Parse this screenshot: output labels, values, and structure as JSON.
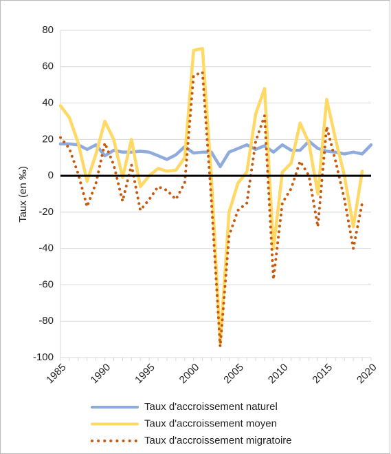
{
  "chart_data": {
    "type": "line",
    "y_label": "Taux (en ‰)",
    "x": [
      1985,
      1986,
      1987,
      1988,
      1989,
      1990,
      1991,
      1992,
      1993,
      1994,
      1995,
      1996,
      1997,
      1998,
      1999,
      2000,
      2001,
      2002,
      2003,
      2004,
      2005,
      2006,
      2007,
      2008,
      2009,
      2010,
      2011,
      2012,
      2013,
      2014,
      2015,
      2016,
      2017,
      2018,
      2019,
      2020
    ],
    "series": [
      {
        "name": "Taux d'accroissement naturel",
        "color": "#8faadc",
        "style": "solid",
        "values": [
          17.5,
          17.5,
          17,
          14.5,
          17,
          11,
          14,
          13,
          13,
          13.5,
          13,
          11,
          9,
          11.5,
          16,
          12.5,
          13,
          13,
          5,
          13,
          15,
          17,
          14.5,
          16.5,
          13,
          17,
          14,
          14,
          19,
          15,
          13.5,
          13,
          12,
          13,
          12,
          17
        ]
      },
      {
        "name": "Taux d'accroissement moyen",
        "color": "#ffd966",
        "style": "solid",
        "values": [
          38.5,
          32,
          18,
          -3,
          12,
          30,
          20,
          -1,
          20,
          -6,
          0,
          4,
          2.5,
          3,
          10,
          69,
          70,
          0,
          -92,
          -20,
          -4,
          2,
          34,
          48,
          -40,
          2,
          7,
          29,
          18,
          -10,
          42,
          20,
          0,
          -28,
          2.5,
          null
        ]
      },
      {
        "name": "Taux d'accroissement migratoire",
        "color": "#c55a11",
        "style": "dotted",
        "values": [
          21,
          15,
          1,
          -17,
          -4,
          18,
          6,
          -14,
          6,
          -19,
          -13,
          -6,
          -8,
          -13,
          -4,
          55,
          57,
          -13,
          -94,
          -33,
          -19,
          -15,
          19,
          33,
          -57,
          -15,
          -7,
          8,
          0,
          -28,
          27,
          8,
          -13,
          -40,
          -15,
          null
        ]
      }
    ],
    "xlim": [
      1985,
      2020
    ],
    "xticks": [
      1985,
      1990,
      1995,
      2000,
      2005,
      2010,
      2015,
      2020
    ],
    "ylim": [
      -100,
      80
    ],
    "yticks": [
      -100,
      -80,
      -60,
      -40,
      -20,
      0,
      20,
      40,
      60,
      80
    ],
    "grid": true
  }
}
